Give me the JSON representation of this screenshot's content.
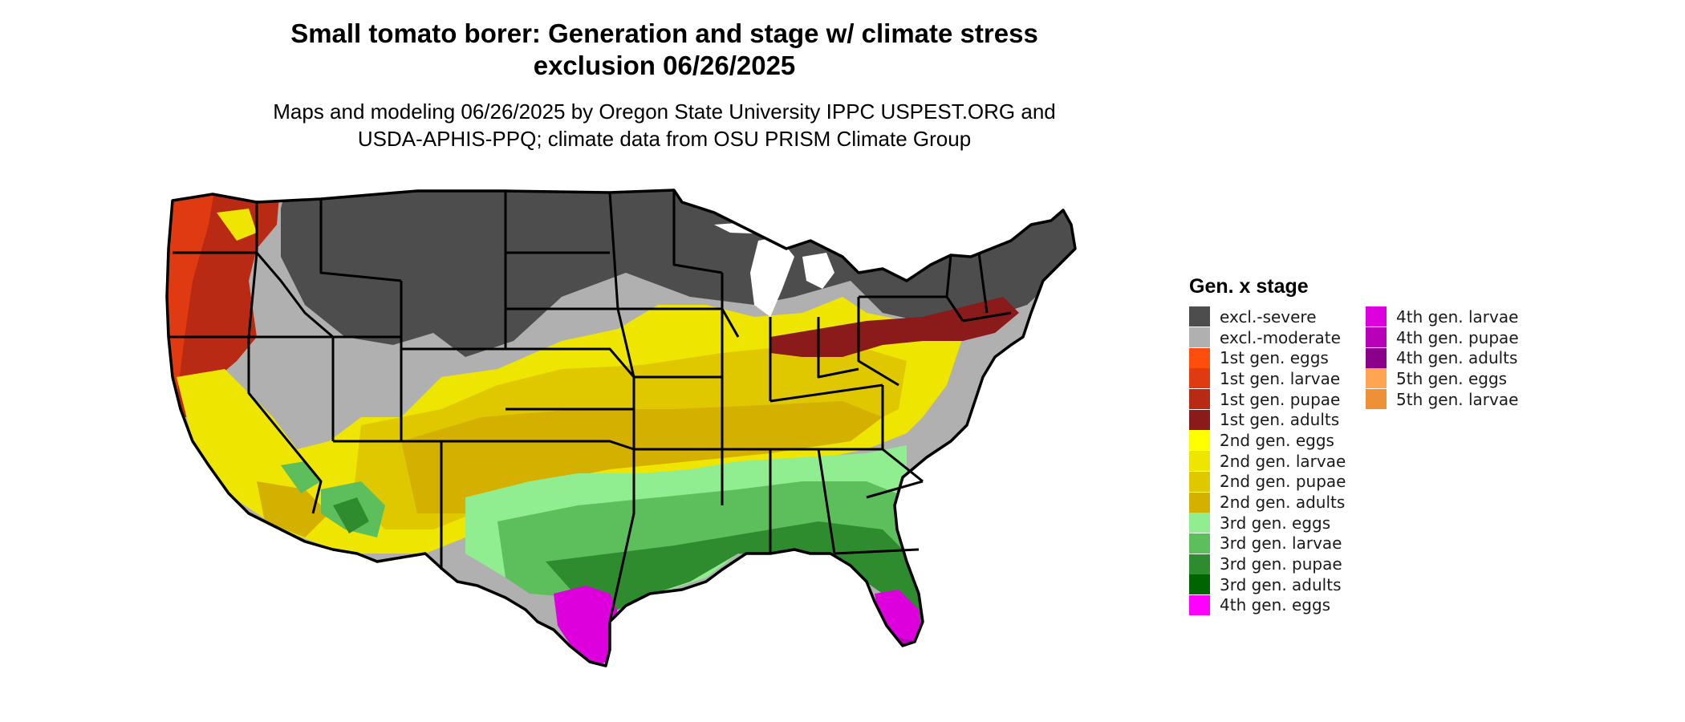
{
  "title": {
    "line1": "Small tomato borer: Generation and stage w/ climate stress",
    "line2": "exclusion 06/26/2025"
  },
  "subtitle": {
    "line1": "Maps and modeling 06/26/2025 by Oregon State University IPPC USPEST.ORG and",
    "line2": "USDA-APHIS-PPQ; climate data from OSU PRISM Climate Group"
  },
  "legend": {
    "title": "Gen. x stage",
    "column1": [
      {
        "label": "excl.-severe",
        "color": "#4d4d4d"
      },
      {
        "label": "excl.-moderate",
        "color": "#b0b0b0"
      },
      {
        "label": "1st gen. eggs",
        "color": "#ff4d0d"
      },
      {
        "label": "1st gen. larvae",
        "color": "#e03a12"
      },
      {
        "label": "1st gen. pupae",
        "color": "#b82a14"
      },
      {
        "label": "1st gen. adults",
        "color": "#8b1a1a"
      },
      {
        "label": "2nd gen. eggs",
        "color": "#ffff00"
      },
      {
        "label": "2nd gen. larvae",
        "color": "#eee600"
      },
      {
        "label": "2nd gen. pupae",
        "color": "#e0c800"
      },
      {
        "label": "2nd gen. adults",
        "color": "#d4b000"
      },
      {
        "label": "3rd gen. eggs",
        "color": "#90ee90"
      },
      {
        "label": "3rd gen. larvae",
        "color": "#5cbf5c"
      },
      {
        "label": "3rd gen. pupae",
        "color": "#2e8b2e"
      },
      {
        "label": "3rd gen. adults",
        "color": "#006400"
      },
      {
        "label": "4th gen. eggs",
        "color": "#ff00ff"
      }
    ],
    "column2": [
      {
        "label": "4th gen. larvae",
        "color": "#dd00dd"
      },
      {
        "label": "4th gen. pupae",
        "color": "#b800b8"
      },
      {
        "label": "4th gen. adults",
        "color": "#8b008b"
      },
      {
        "label": "5th gen. eggs",
        "color": "#ffa552"
      },
      {
        "label": "5th gen. larvae",
        "color": "#ee9035"
      }
    ]
  }
}
